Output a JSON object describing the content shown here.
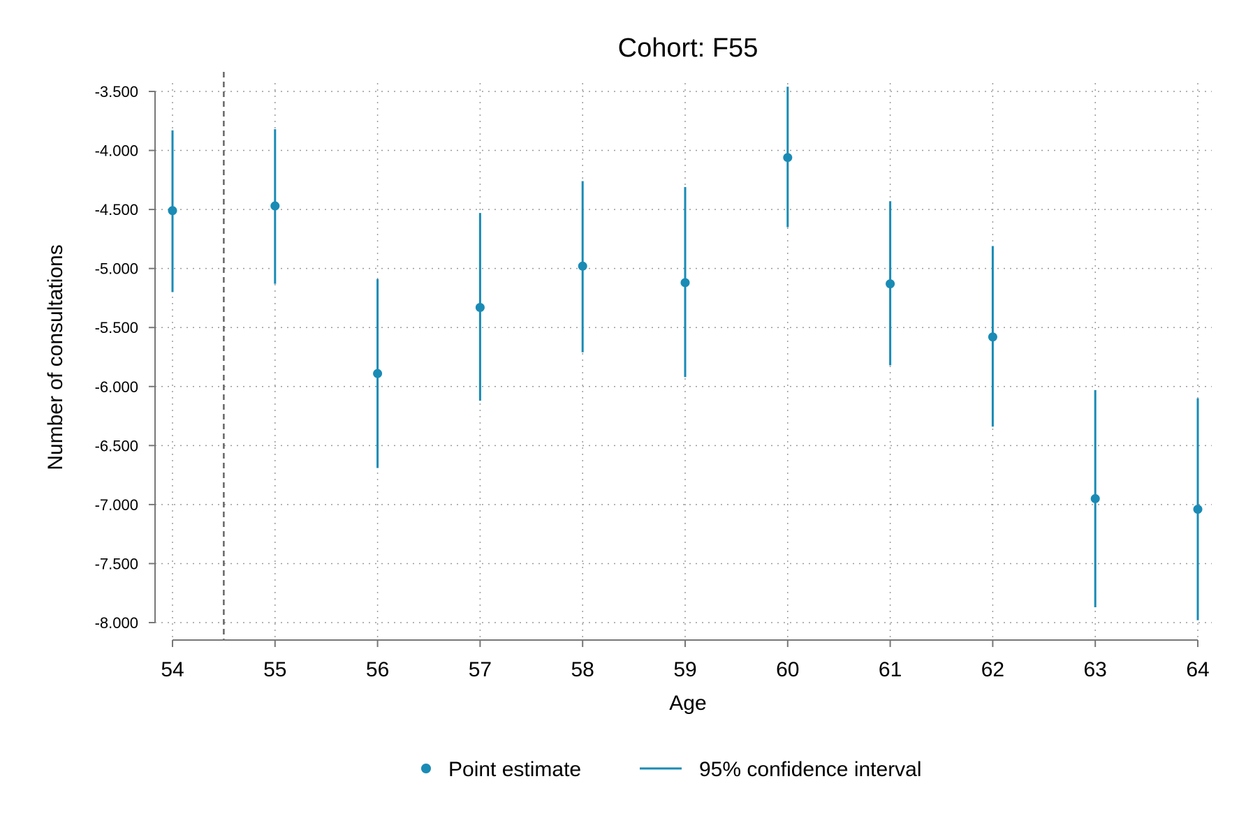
{
  "chart_data": {
    "type": "scatter",
    "title": "Cohort: F55",
    "xlabel": "Age",
    "ylabel": "Number of consultations",
    "x_ticks": [
      "54",
      "55",
      "56",
      "57",
      "58",
      "59",
      "60",
      "61",
      "62",
      "63",
      "64"
    ],
    "y_ticks": [
      "-3.500",
      "-4.000",
      "-4.500",
      "-5.000",
      "-5.500",
      "-6.000",
      "-6.500",
      "-7.000",
      "-7.500",
      "-8.000"
    ],
    "y_tick_values": [
      -3.5,
      -4.0,
      -4.5,
      -5.0,
      -5.5,
      -6.0,
      -6.5,
      -7.0,
      -7.5,
      -8.0
    ],
    "xlim": [
      54,
      64
    ],
    "ylim": [
      -8.0,
      -3.5
    ],
    "grid": true,
    "reference_line_x": 54.5,
    "colors": {
      "series": "#1a8bb5",
      "axis": "#777777",
      "grid": "#9a9a9a",
      "reference_line": "#666666"
    },
    "series": [
      {
        "name": "Point estimate",
        "x": [
          54,
          55,
          56,
          57,
          58,
          59,
          60,
          61,
          62,
          63,
          64
        ],
        "y": [
          -4.51,
          -4.47,
          -5.89,
          -5.33,
          -4.98,
          -5.12,
          -4.06,
          -5.13,
          -5.58,
          -6.95,
          -7.04
        ]
      },
      {
        "name": "95% confidence interval",
        "x": [
          54,
          55,
          56,
          57,
          58,
          59,
          60,
          61,
          62,
          63,
          64
        ],
        "lower": [
          -5.2,
          -5.13,
          -6.69,
          -6.12,
          -5.71,
          -5.92,
          -4.65,
          -5.82,
          -6.34,
          -7.87,
          -7.98
        ],
        "upper": [
          -3.83,
          -3.82,
          -5.09,
          -4.53,
          -4.26,
          -4.31,
          -3.46,
          -4.43,
          -4.81,
          -6.03,
          -6.1
        ]
      }
    ],
    "legend": {
      "position": "bottom",
      "items": [
        "Point estimate",
        "95% confidence interval"
      ]
    }
  }
}
